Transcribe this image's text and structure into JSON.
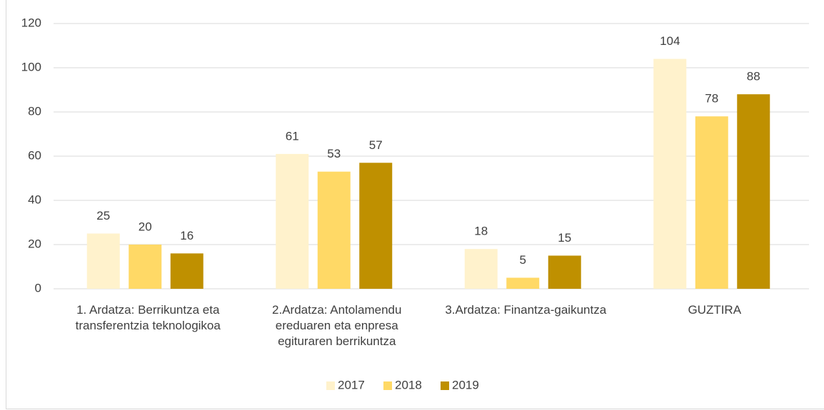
{
  "chart_data": {
    "type": "bar",
    "categories": [
      "1. Ardatza: Berrikuntza eta transferentzia teknologikoa",
      "2.Ardatza: Antolamendu ereduaren eta enpresa egituraren berrikuntza",
      "3.Ardatza: Finantza-gaikuntza",
      "GUZTIRA"
    ],
    "series": [
      {
        "name": "2017",
        "color": "#fff2cc",
        "values": [
          25,
          61,
          18,
          104
        ]
      },
      {
        "name": "2018",
        "color": "#ffd966",
        "values": [
          20,
          53,
          5,
          78
        ]
      },
      {
        "name": "2019",
        "color": "#bf9000",
        "values": [
          16,
          57,
          15,
          88
        ]
      }
    ],
    "ylim": [
      0,
      120
    ],
    "yticks": [
      0,
      20,
      40,
      60,
      80,
      100,
      120
    ],
    "grid": true,
    "legend": "bottom"
  }
}
